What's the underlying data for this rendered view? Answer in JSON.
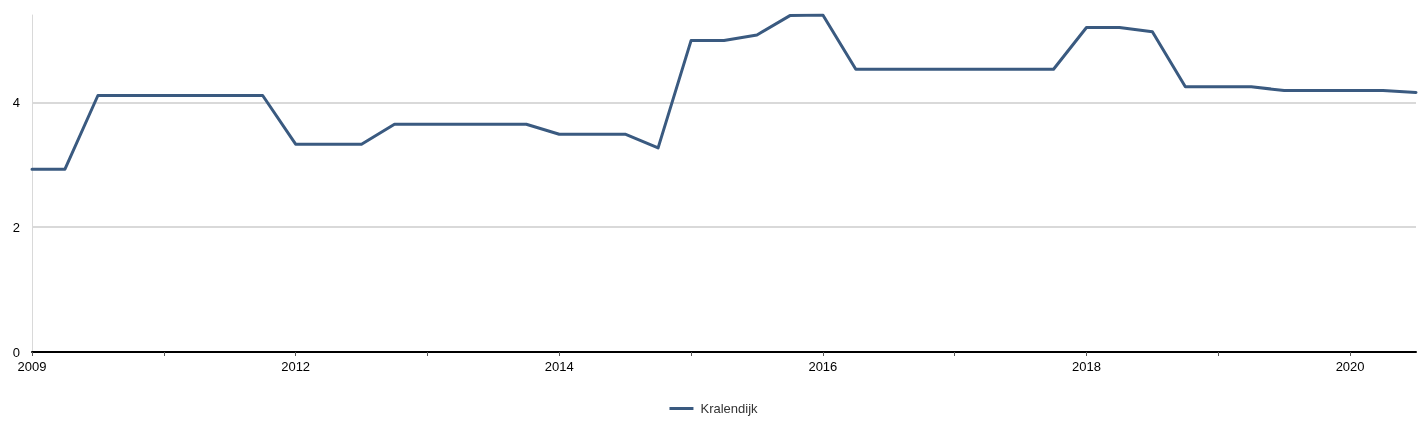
{
  "chart_data": {
    "type": "line",
    "categories": [
      "2009",
      null,
      null,
      null,
      null,
      null,
      null,
      null,
      "2012",
      null,
      null,
      null,
      null,
      null,
      null,
      null,
      "2014",
      null,
      null,
      null,
      null,
      null,
      null,
      null,
      "2016",
      null,
      null,
      null,
      null,
      null,
      null,
      null,
      "2018",
      null,
      null,
      null,
      null,
      null,
      null,
      null,
      "2020",
      null,
      null
    ],
    "series": [
      {
        "name": "Kralendijk",
        "color": "#3a5a80",
        "values": [
          2.93,
          2.93,
          4.11,
          4.11,
          4.11,
          4.11,
          4.11,
          4.11,
          3.33,
          3.33,
          3.33,
          3.65,
          3.65,
          3.65,
          3.65,
          3.65,
          3.49,
          3.49,
          3.49,
          3.27,
          4.99,
          4.99,
          5.08,
          5.39,
          5.4,
          4.53,
          4.53,
          4.53,
          4.53,
          4.53,
          4.53,
          4.53,
          5.2,
          5.2,
          5.13,
          4.25,
          4.25,
          4.25,
          4.19,
          4.19,
          4.19,
          4.19,
          4.16
        ]
      }
    ],
    "ylim": [
      0,
      5.4
    ],
    "yticks": [
      0,
      2,
      4
    ],
    "grid": "y",
    "legend": "bottom",
    "marker": "none",
    "line_style": "solid"
  }
}
